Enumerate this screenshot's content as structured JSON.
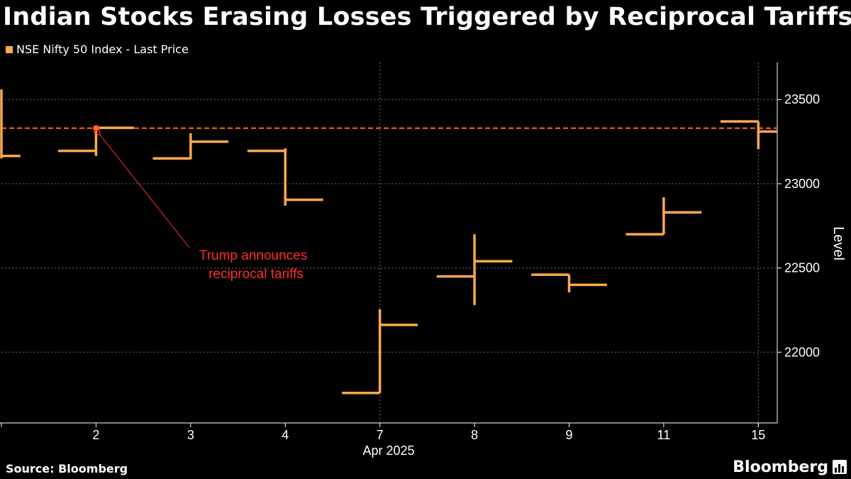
{
  "header": {
    "title": "Indian Stocks Erasing Losses Triggered by Reciprocal Tariffs"
  },
  "footer": {
    "source": "Source: Bloomberg",
    "brand": "Bloomberg",
    "brand_icon": "bar-chart-icon"
  },
  "colors": {
    "series": "#ffa94d",
    "reference": "#ff6a1a",
    "annotation": "#ff2d2d",
    "grid": "#6b6b6b",
    "background": "#000000"
  },
  "chart_data": {
    "type": "line",
    "title": "Indian Stocks Erasing Losses Triggered by Reciprocal Tariffs",
    "legend": [
      "NSE Nifty 50 Index - Last Price"
    ],
    "xlabel": "Apr 2025",
    "ylabel": "Level",
    "xlim": [
      0,
      8.2
    ],
    "ylim": [
      21580,
      23720
    ],
    "yticks": [
      22000,
      22500,
      23000,
      23500
    ],
    "ytick_labels": [
      "22000",
      "22500",
      "23000",
      "23500"
    ],
    "x_tick_positions": [
      1,
      2,
      3,
      4,
      5,
      6,
      7,
      8
    ],
    "x_tick_labels": [
      "2",
      "3",
      "4",
      "7",
      "8",
      "9",
      "11",
      "15"
    ],
    "x_grid_positions": [
      4,
      8
    ],
    "reference_line": 23330,
    "series": [
      {
        "name": "NSE Nifty 50 Index - Last Price",
        "segments": [
          {
            "x0": 0.0,
            "x1": 0.2,
            "y": 23165
          },
          {
            "x0": 0.6,
            "x1": 1.0,
            "y": 23195
          },
          {
            "x0": 1.0,
            "x1": 1.4,
            "y": 23332
          },
          {
            "x0": 1.6,
            "x1": 2.0,
            "y": 23150
          },
          {
            "x0": 2.0,
            "x1": 2.4,
            "y": 23250
          },
          {
            "x0": 2.6,
            "x1": 3.0,
            "y": 23195
          },
          {
            "x0": 3.0,
            "x1": 3.4,
            "y": 22905
          },
          {
            "x0": 3.6,
            "x1": 4.0,
            "y": 21758
          },
          {
            "x0": 4.0,
            "x1": 4.4,
            "y": 22162
          },
          {
            "x0": 4.6,
            "x1": 5.0,
            "y": 22450
          },
          {
            "x0": 5.0,
            "x1": 5.4,
            "y": 22540
          },
          {
            "x0": 5.6,
            "x1": 6.0,
            "y": 22460
          },
          {
            "x0": 6.0,
            "x1": 6.4,
            "y": 22400
          },
          {
            "x0": 6.6,
            "x1": 7.0,
            "y": 22700
          },
          {
            "x0": 7.0,
            "x1": 7.4,
            "y": 22830
          },
          {
            "x0": 7.6,
            "x1": 8.0,
            "y": 23370
          },
          {
            "x0": 8.0,
            "x1": 8.2,
            "y": 23310
          }
        ],
        "vertical_moves": [
          {
            "x": 0.0,
            "y0": 23150,
            "y1": 23560
          },
          {
            "x": 1.0,
            "y0": 23165,
            "y1": 23345
          },
          {
            "x": 2.0,
            "y0": 23145,
            "y1": 23300
          },
          {
            "x": 3.0,
            "y0": 22870,
            "y1": 23210
          },
          {
            "x": 4.0,
            "y0": 21758,
            "y1": 22255
          },
          {
            "x": 5.0,
            "y0": 22280,
            "y1": 22700
          },
          {
            "x": 6.0,
            "y0": 22355,
            "y1": 22460
          },
          {
            "x": 7.0,
            "y0": 22700,
            "y1": 22920
          },
          {
            "x": 8.0,
            "y0": 23205,
            "y1": 23370
          }
        ]
      }
    ],
    "annotation": {
      "text_line1": "Trump announces",
      "text_line2": "reciprocal tariffs",
      "point": {
        "x": 1.0,
        "y": 23330
      }
    }
  }
}
